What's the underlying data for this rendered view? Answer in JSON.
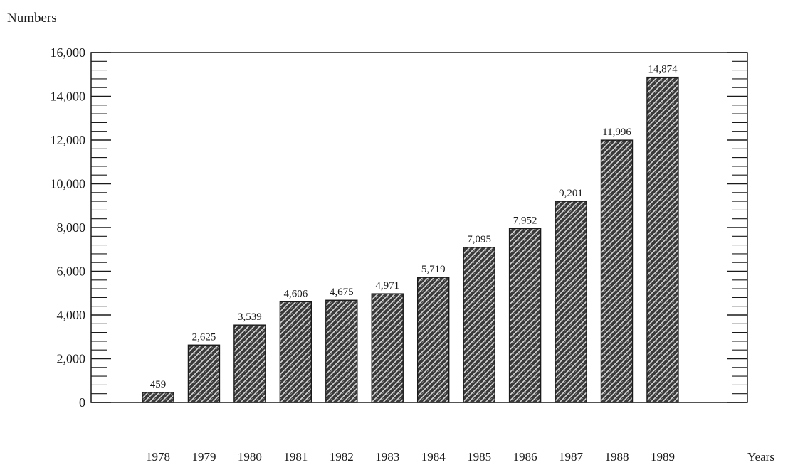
{
  "chart_data": {
    "type": "bar",
    "ylabel": "Numbers",
    "xlabel": "Years",
    "categories": [
      "1978",
      "1979",
      "1980",
      "1981",
      "1982",
      "1983",
      "1984",
      "1985",
      "1986",
      "1987",
      "1988",
      "1989"
    ],
    "values": [
      459,
      2625,
      3539,
      4606,
      4675,
      4971,
      5719,
      7095,
      7952,
      9201,
      11996,
      14874
    ],
    "value_labels": [
      "459",
      "2,625",
      "3,539",
      "4,606",
      "4,675",
      "4,971",
      "5,719",
      "7,095",
      "7,952",
      "9,201",
      "11,996",
      "14,874"
    ],
    "y_ticks": [
      0,
      2000,
      4000,
      6000,
      8000,
      10000,
      12000,
      14000,
      16000
    ],
    "y_tick_labels": [
      "0",
      "2,000",
      "4,000",
      "6,000",
      "8,000",
      "10,000",
      "12,000",
      "14,000",
      "16,000"
    ],
    "ylim": [
      0,
      16000
    ],
    "grid": false,
    "bar_fill": "crosshatch"
  }
}
